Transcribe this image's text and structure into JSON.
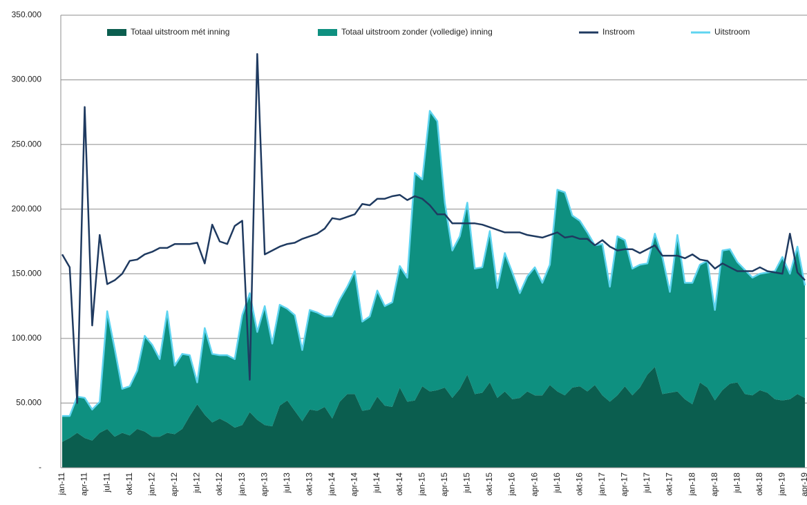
{
  "chart_data": {
    "type": "stacked-area-line",
    "categories": [
      "jan-11",
      null,
      null,
      "apr-11",
      null,
      null,
      "jul-11",
      null,
      null,
      "okt-11",
      null,
      null,
      "jan-12",
      null,
      null,
      "apr-12",
      null,
      null,
      "jul-12",
      null,
      null,
      "okt-12",
      null,
      null,
      "jan-13",
      null,
      null,
      "apr-13",
      null,
      null,
      "jul-13",
      null,
      null,
      "okt-13",
      null,
      null,
      "jan-14",
      null,
      null,
      "apr-14",
      null,
      null,
      "jul-14",
      null,
      null,
      "okt-14",
      null,
      null,
      "jan-15",
      null,
      null,
      "apr-15",
      null,
      null,
      "jul-15",
      null,
      null,
      "okt-15",
      null,
      null,
      "jan-16",
      null,
      null,
      "apr-16",
      null,
      null,
      "jul-16",
      null,
      null,
      "okt-16",
      null,
      null,
      "jan-17",
      null,
      null,
      "apr-17",
      null,
      null,
      "jul-17",
      null,
      null,
      "okt-17",
      null,
      null,
      "jan-18",
      null,
      null,
      "apr-18",
      null,
      null,
      "jul-18",
      null,
      null,
      "okt-18",
      null,
      null,
      "jan-19",
      null,
      null,
      "apr-19"
    ],
    "series": [
      {
        "name": "Totaal uitstroom mét inning",
        "kind": "area",
        "color": "#0b5e4f",
        "values": [
          20000,
          23000,
          27000,
          23000,
          21000,
          27000,
          30000,
          24000,
          27000,
          25000,
          30000,
          28000,
          24000,
          24000,
          27000,
          26000,
          30000,
          40000,
          49000,
          41000,
          35000,
          38000,
          35000,
          31000,
          33000,
          43000,
          37000,
          33000,
          32000,
          48000,
          52000,
          44000,
          36000,
          45000,
          44000,
          47000,
          38000,
          51000,
          57000,
          57000,
          44000,
          45000,
          55000,
          48000,
          47000,
          62000,
          51000,
          52000,
          63000,
          59000,
          60000,
          62000,
          54000,
          61000,
          72000,
          57000,
          58000,
          66000,
          54000,
          59000,
          53000,
          54000,
          59000,
          56000,
          56000,
          64000,
          59000,
          56000,
          62000,
          63000,
          59000,
          64000,
          56000,
          51000,
          56000,
          63000,
          56000,
          62000,
          72000,
          78000,
          57000,
          58000,
          59000,
          53000,
          49000,
          66000,
          62000,
          52000,
          60000,
          65000,
          66000,
          57000,
          56000,
          60000,
          58000,
          53000,
          52000,
          53000,
          57000,
          54000
        ]
      },
      {
        "name": "Totaal uitstroom zonder (volledige) inning",
        "kind": "area",
        "color": "#0e9080",
        "values": [
          20000,
          17000,
          28000,
          31000,
          24000,
          24000,
          91000,
          68000,
          34000,
          38000,
          45000,
          74000,
          71000,
          60000,
          94000,
          53000,
          58000,
          47000,
          17000,
          67000,
          53000,
          49000,
          52000,
          53000,
          85000,
          92000,
          68000,
          92000,
          64000,
          78000,
          71000,
          74000,
          55000,
          77000,
          76000,
          70000,
          79000,
          79000,
          83000,
          95000,
          69000,
          72000,
          82000,
          77000,
          81000,
          94000,
          96000,
          176000,
          160000,
          217000,
          208000,
          143000,
          114000,
          118000,
          133000,
          97000,
          97000,
          117000,
          85000,
          107000,
          98000,
          81000,
          89000,
          99000,
          87000,
          93000,
          156000,
          157000,
          133000,
          128000,
          123000,
          108000,
          117000,
          89000,
          123000,
          113000,
          98000,
          95000,
          86000,
          103000,
          106000,
          78000,
          121000,
          90000,
          94000,
          91000,
          98000,
          70000,
          108000,
          104000,
          93000,
          96000,
          91000,
          90000,
          93000,
          99000,
          111000,
          97000,
          114000,
          87000
        ]
      },
      {
        "name": "Instroom",
        "kind": "line",
        "color": "#1f3a60",
        "values": [
          165000,
          155000,
          50000,
          279000,
          110000,
          180000,
          142000,
          145000,
          150000,
          160000,
          161000,
          165000,
          167000,
          170000,
          170000,
          173000,
          173000,
          173000,
          174000,
          158000,
          188000,
          175000,
          173000,
          187000,
          191000,
          68000,
          320000,
          165000,
          168000,
          171000,
          173000,
          174000,
          177000,
          179000,
          181000,
          185000,
          193000,
          192000,
          194000,
          196000,
          204000,
          203000,
          208000,
          208000,
          210000,
          211000,
          207000,
          210000,
          208000,
          203000,
          196000,
          196000,
          189000,
          189000,
          189000,
          189000,
          188000,
          186000,
          184000,
          182000,
          182000,
          182000,
          180000,
          179000,
          178000,
          180000,
          182000,
          178000,
          179000,
          177000,
          177000,
          172000,
          176000,
          171000,
          168000,
          169000,
          169000,
          166000,
          169000,
          172000,
          164000,
          164000,
          164000,
          162000,
          165000,
          161000,
          160000,
          154000,
          158000,
          155000,
          152000,
          152000,
          152000,
          155000,
          152000,
          151000,
          150000,
          181000,
          151000,
          145000
        ]
      },
      {
        "name": "Uitstroom",
        "kind": "line",
        "color": "#5fd4f0",
        "values": [
          40000,
          40000,
          55000,
          54000,
          45000,
          51000,
          121000,
          92000,
          61000,
          63000,
          75000,
          102000,
          95000,
          84000,
          121000,
          79000,
          88000,
          87000,
          66000,
          108000,
          88000,
          87000,
          87000,
          84000,
          118000,
          135000,
          105000,
          125000,
          96000,
          126000,
          123000,
          118000,
          91000,
          122000,
          120000,
          117000,
          117000,
          130000,
          140000,
          152000,
          113000,
          117000,
          137000,
          125000,
          128000,
          156000,
          147000,
          228000,
          223000,
          276000,
          268000,
          205000,
          168000,
          179000,
          205000,
          154000,
          155000,
          183000,
          139000,
          166000,
          151000,
          135000,
          148000,
          155000,
          143000,
          157000,
          215000,
          213000,
          195000,
          191000,
          182000,
          172000,
          173000,
          140000,
          179000,
          176000,
          154000,
          157000,
          158000,
          181000,
          163000,
          136000,
          180000,
          143000,
          143000,
          157000,
          160000,
          122000,
          168000,
          169000,
          159000,
          153000,
          147000,
          150000,
          151000,
          152000,
          163000,
          150000,
          171000,
          141000
        ]
      }
    ],
    "ylim": [
      0,
      350000
    ],
    "yticks": [
      {
        "value": 0,
        "label": "-"
      },
      {
        "value": 50000,
        "label": "50.000"
      },
      {
        "value": 100000,
        "label": "100.000"
      },
      {
        "value": 150000,
        "label": "150.000"
      },
      {
        "value": 200000,
        "label": "200.000"
      },
      {
        "value": 250000,
        "label": "250.000"
      },
      {
        "value": 300000,
        "label": "300.000"
      },
      {
        "value": 350000,
        "label": "350.000"
      }
    ],
    "grid": true,
    "legend": "top"
  }
}
